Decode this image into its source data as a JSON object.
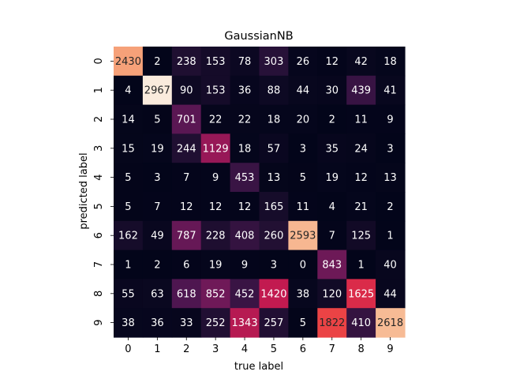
{
  "chart_data": {
    "type": "heatmap",
    "title": "GaussianNB",
    "xlabel": "true label",
    "ylabel": "predicted label",
    "x_ticks": [
      "0",
      "1",
      "2",
      "3",
      "4",
      "5",
      "6",
      "7",
      "8",
      "9"
    ],
    "y_ticks": [
      "0",
      "1",
      "2",
      "3",
      "4",
      "5",
      "6",
      "7",
      "8",
      "9"
    ],
    "colormap": "rocket",
    "colorbar": false,
    "value_range": [
      0,
      2967
    ],
    "values": [
      [
        2430,
        2,
        238,
        153,
        78,
        303,
        26,
        12,
        42,
        18
      ],
      [
        4,
        2967,
        90,
        153,
        36,
        88,
        44,
        30,
        439,
        41
      ],
      [
        14,
        5,
        701,
        22,
        22,
        18,
        20,
        2,
        11,
        9
      ],
      [
        15,
        19,
        244,
        1129,
        18,
        57,
        3,
        35,
        24,
        3
      ],
      [
        5,
        3,
        7,
        9,
        453,
        13,
        5,
        19,
        12,
        13
      ],
      [
        5,
        7,
        12,
        12,
        12,
        165,
        11,
        4,
        21,
        2
      ],
      [
        162,
        49,
        787,
        228,
        408,
        260,
        2593,
        7,
        125,
        1
      ],
      [
        1,
        2,
        6,
        19,
        9,
        3,
        0,
        843,
        1,
        40
      ],
      [
        55,
        63,
        618,
        852,
        452,
        1420,
        38,
        120,
        1625,
        44
      ],
      [
        38,
        36,
        33,
        252,
        1343,
        257,
        5,
        1822,
        410,
        2618
      ]
    ]
  }
}
